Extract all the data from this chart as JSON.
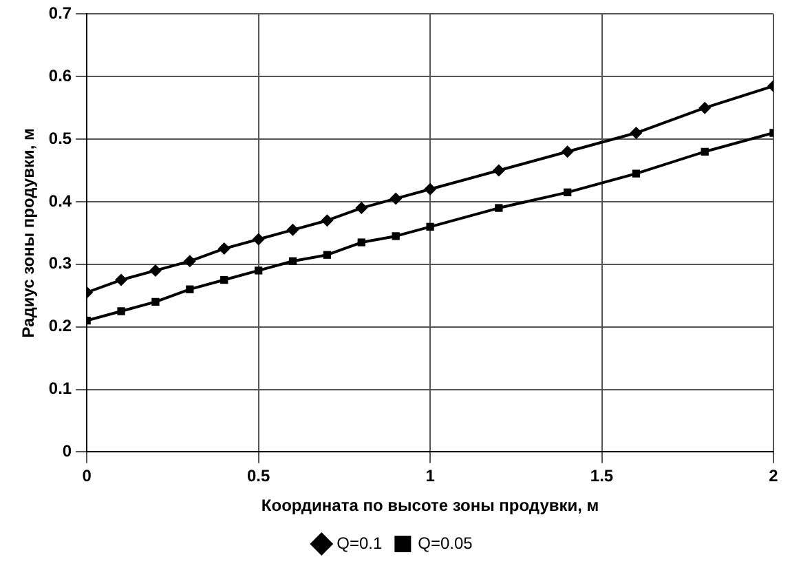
{
  "chart_data": {
    "type": "line",
    "xlabel": "Координата по высоте зоны продувки, м",
    "ylabel": "Радиус зоны продувки, м",
    "x": [
      0,
      0.1,
      0.2,
      0.3,
      0.4,
      0.5,
      0.6,
      0.7,
      0.8,
      0.9,
      1,
      1.2,
      1.4,
      1.6,
      1.8,
      2
    ],
    "series": [
      {
        "name": "Q=0.1",
        "color": "#000000",
        "marker": "diamond",
        "values": [
          0.255,
          0.275,
          0.29,
          0.305,
          0.325,
          0.34,
          0.355,
          0.37,
          0.39,
          0.405,
          0.42,
          0.45,
          0.48,
          0.51,
          0.55,
          0.585
        ]
      },
      {
        "name": "Q=0.05",
        "color": "#000000",
        "marker": "square",
        "values": [
          0.21,
          0.225,
          0.24,
          0.26,
          0.275,
          0.29,
          0.305,
          0.315,
          0.335,
          0.345,
          0.36,
          0.39,
          0.415,
          0.445,
          0.48,
          0.51
        ]
      }
    ],
    "xlim": [
      0,
      2
    ],
    "xticks": [
      0,
      0.5,
      1,
      1.5,
      2
    ],
    "ylim": [
      0,
      0.7
    ],
    "yticks": [
      0,
      0.1,
      0.2,
      0.3,
      0.4,
      0.5,
      0.6,
      0.7
    ],
    "grid": true,
    "legend": "bottom",
    "line_style": "solid"
  }
}
